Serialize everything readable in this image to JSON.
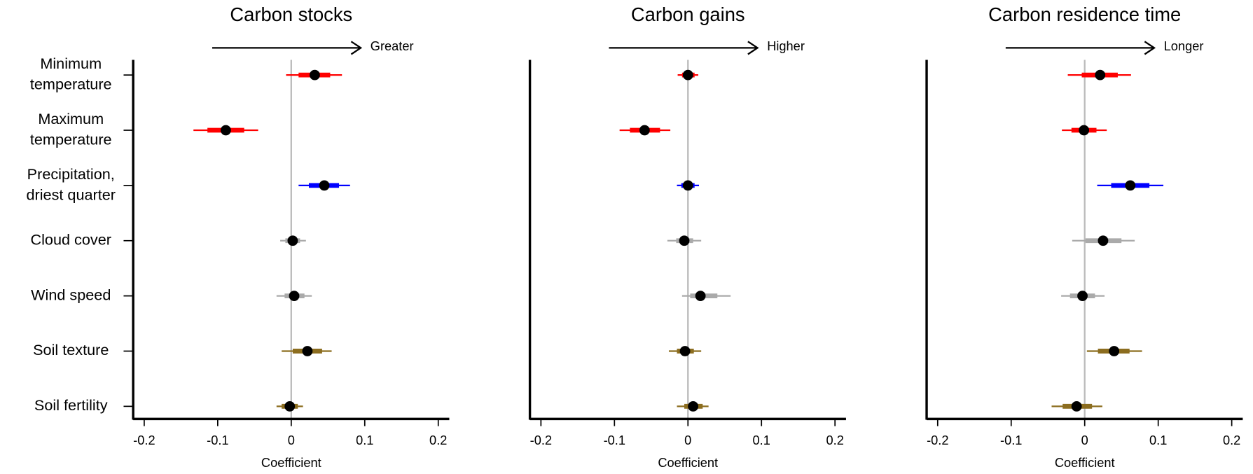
{
  "chart_data": [
    {
      "type": "point-range",
      "title": "Carbon stocks",
      "arrow_label": "Greater",
      "xlabel": "Coefficient",
      "categories": [
        [
          "Minimum",
          "temperature"
        ],
        [
          "Maximum",
          "temperature"
        ],
        [
          "Precipitation,",
          "driest quarter"
        ],
        [
          "Cloud cover"
        ],
        [
          "Wind speed"
        ],
        [
          "Soil texture"
        ],
        [
          "Soil fertility"
        ]
      ],
      "colors": [
        "#ff0000",
        "#ff0000",
        "#0000ff",
        "#aaaaaa",
        "#aaaaaa",
        "#8c6d1f",
        "#8c6d1f"
      ],
      "values": [
        0.032,
        -0.089,
        0.045,
        0.002,
        0.004,
        0.022,
        -0.002
      ],
      "inner_low": [
        0.01,
        -0.114,
        0.024,
        -0.008,
        -0.009,
        0.002,
        -0.013
      ],
      "inner_high": [
        0.053,
        -0.064,
        0.065,
        0.012,
        0.018,
        0.042,
        0.009
      ],
      "outer_low": [
        -0.007,
        -0.133,
        0.01,
        -0.015,
        -0.02,
        -0.013,
        -0.02
      ],
      "outer_high": [
        0.069,
        -0.045,
        0.08,
        0.02,
        0.028,
        0.055,
        0.016
      ],
      "xlim": [
        -0.215,
        0.215
      ],
      "xticks": [
        -0.2,
        -0.1,
        0,
        0.1,
        0.2
      ]
    },
    {
      "type": "point-range",
      "title": "Carbon gains",
      "arrow_label": "Higher",
      "xlabel": "Coefficient",
      "colors": [
        "#ff0000",
        "#ff0000",
        "#0000ff",
        "#aaaaaa",
        "#aaaaaa",
        "#8c6d1f",
        "#8c6d1f"
      ],
      "values": [
        0.0,
        -0.059,
        0.0,
        -0.005,
        0.017,
        -0.004,
        0.007
      ],
      "inner_low": [
        -0.008,
        -0.079,
        -0.009,
        -0.016,
        0.003,
        -0.015,
        -0.005
      ],
      "inner_high": [
        0.009,
        -0.038,
        0.009,
        0.007,
        0.04,
        0.008,
        0.02
      ],
      "outer_low": [
        -0.014,
        -0.093,
        -0.015,
        -0.028,
        -0.008,
        -0.026,
        -0.015
      ],
      "outer_high": [
        0.014,
        -0.024,
        0.015,
        0.018,
        0.058,
        0.018,
        0.028
      ],
      "xlim": [
        -0.215,
        0.215
      ],
      "xticks": [
        -0.2,
        -0.1,
        0,
        0.1,
        0.2
      ]
    },
    {
      "type": "point-range",
      "title": "Carbon residence time",
      "arrow_label": "Longer",
      "xlabel": "Coefficient",
      "colors": [
        "#ff0000",
        "#ff0000",
        "#0000ff",
        "#aaaaaa",
        "#aaaaaa",
        "#8c6d1f",
        "#8c6d1f"
      ],
      "values": [
        0.021,
        -0.001,
        0.062,
        0.025,
        -0.003,
        0.04,
        -0.011
      ],
      "inner_low": [
        -0.004,
        -0.018,
        0.036,
        0.001,
        -0.02,
        0.018,
        -0.03
      ],
      "inner_high": [
        0.045,
        0.016,
        0.088,
        0.05,
        0.014,
        0.061,
        0.01
      ],
      "outer_low": [
        -0.023,
        -0.031,
        0.017,
        -0.017,
        -0.032,
        0.003,
        -0.045
      ],
      "outer_high": [
        0.063,
        0.03,
        0.107,
        0.068,
        0.027,
        0.078,
        0.024
      ],
      "xlim": [
        -0.215,
        0.215
      ],
      "xticks": [
        -0.2,
        -0.1,
        0,
        0.1,
        0.2
      ]
    }
  ]
}
